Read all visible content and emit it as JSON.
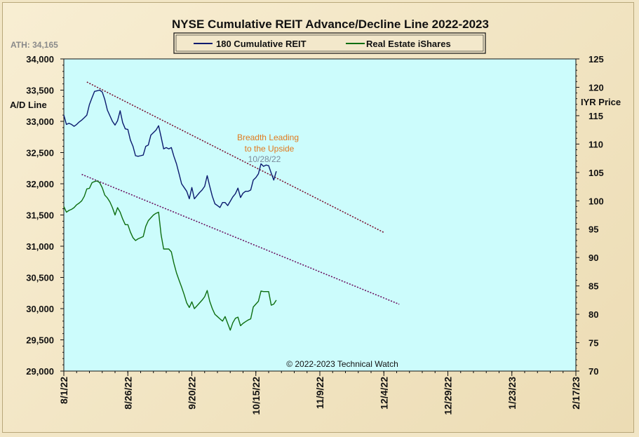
{
  "chart_data": {
    "type": "line",
    "title": "NYSE Cumulative  REIT Advance/Decline  Line 2022-2023",
    "ath_label": "ATH: 34,165",
    "ylabel_left": "A/D Line",
    "ylabel_right": "IYR Price",
    "copyright": "© 2022-2023  Technical  Watch",
    "annotation": {
      "lines": [
        "Breadth Leading",
        "to the Upside"
      ],
      "date": "10/28/22",
      "color": "#e07a1f",
      "date_color": "#7a8a9a"
    },
    "x_range": [
      0,
      200
    ],
    "x_ticks": [
      {
        "label": "8/1/22",
        "day": 0
      },
      {
        "label": "8/26/22",
        "day": 25
      },
      {
        "label": "9/20/22",
        "day": 50
      },
      {
        "label": "10/15/22",
        "day": 75
      },
      {
        "label": "11/9/22",
        "day": 100
      },
      {
        "label": "12/4/22",
        "day": 125
      },
      {
        "label": "12/29/22",
        "day": 150
      },
      {
        "label": "1/23/23",
        "day": 175
      },
      {
        "label": "2/17/23",
        "day": 200
      }
    ],
    "y_left": {
      "min": 29000,
      "max": 34000,
      "ticks": [
        "29,000",
        "29,500",
        "30,000",
        "30,500",
        "31,000",
        "31,500",
        "32,000",
        "32,500",
        "33,000",
        "33,500",
        "34,000"
      ]
    },
    "y_right": {
      "min": 70,
      "max": 125,
      "ticks": [
        "70",
        "75",
        "80",
        "85",
        "90",
        "95",
        "100",
        "105",
        "110",
        "115",
        "120",
        "125"
      ]
    },
    "series": [
      {
        "name": "180 Cumulative REIT",
        "axis": "left",
        "color": "#0b1a6e",
        "points": [
          [
            0,
            33100
          ],
          [
            1,
            32950
          ],
          [
            2,
            32970
          ],
          [
            3,
            32950
          ],
          [
            4,
            32920
          ],
          [
            5,
            32950
          ],
          [
            6,
            32990
          ],
          [
            7,
            33020
          ],
          [
            8,
            33060
          ],
          [
            9,
            33100
          ],
          [
            10,
            33270
          ],
          [
            11,
            33380
          ],
          [
            12,
            33480
          ],
          [
            13,
            33490
          ],
          [
            14,
            33500
          ],
          [
            15,
            33470
          ],
          [
            16,
            33350
          ],
          [
            17,
            33180
          ],
          [
            18,
            33090
          ],
          [
            19,
            33000
          ],
          [
            20,
            32940
          ],
          [
            21,
            33010
          ],
          [
            22,
            33170
          ],
          [
            23,
            32980
          ],
          [
            24,
            32880
          ],
          [
            25,
            32870
          ],
          [
            26,
            32700
          ],
          [
            27,
            32600
          ],
          [
            28,
            32450
          ],
          [
            29,
            32440
          ],
          [
            30,
            32450
          ],
          [
            31,
            32460
          ],
          [
            32,
            32600
          ],
          [
            33,
            32620
          ],
          [
            34,
            32780
          ],
          [
            35,
            32820
          ],
          [
            36,
            32860
          ],
          [
            37,
            32930
          ],
          [
            38,
            32750
          ],
          [
            39,
            32560
          ],
          [
            40,
            32580
          ],
          [
            41,
            32560
          ],
          [
            42,
            32580
          ],
          [
            43,
            32440
          ],
          [
            44,
            32320
          ],
          [
            45,
            32160
          ],
          [
            46,
            32000
          ],
          [
            47,
            31940
          ],
          [
            48,
            31880
          ],
          [
            49,
            31760
          ],
          [
            50,
            31940
          ],
          [
            51,
            31760
          ],
          [
            52,
            31810
          ],
          [
            53,
            31860
          ],
          [
            54,
            31900
          ],
          [
            55,
            31960
          ],
          [
            56,
            32130
          ],
          [
            57,
            31960
          ],
          [
            58,
            31800
          ],
          [
            59,
            31680
          ],
          [
            60,
            31650
          ],
          [
            61,
            31620
          ],
          [
            62,
            31700
          ],
          [
            63,
            31700
          ],
          [
            64,
            31650
          ],
          [
            65,
            31720
          ],
          [
            66,
            31790
          ],
          [
            67,
            31840
          ],
          [
            68,
            31930
          ],
          [
            69,
            31780
          ],
          [
            70,
            31850
          ],
          [
            71,
            31880
          ],
          [
            72,
            31880
          ],
          [
            73,
            31900
          ],
          [
            74,
            32060
          ],
          [
            75,
            32100
          ],
          [
            76,
            32160
          ],
          [
            77,
            32320
          ],
          [
            78,
            32280
          ],
          [
            79,
            32300
          ],
          [
            80,
            32290
          ],
          [
            81,
            32170
          ],
          [
            82,
            32060
          ],
          [
            83,
            32200
          ]
        ]
      },
      {
        "name": "Real Estate iShares",
        "axis": "right",
        "color": "#0d6e10",
        "points": [
          [
            0,
            99.0
          ],
          [
            1,
            98.0
          ],
          [
            2,
            98.3
          ],
          [
            3,
            98.5
          ],
          [
            4,
            98.8
          ],
          [
            5,
            99.3
          ],
          [
            6,
            99.6
          ],
          [
            7,
            100.0
          ],
          [
            8,
            100.8
          ],
          [
            9,
            102.1
          ],
          [
            10,
            102.2
          ],
          [
            11,
            103.2
          ],
          [
            12,
            103.4
          ],
          [
            13,
            103.5
          ],
          [
            14,
            103.2
          ],
          [
            15,
            102.3
          ],
          [
            16,
            101.0
          ],
          [
            17,
            100.5
          ],
          [
            18,
            99.8
          ],
          [
            19,
            98.8
          ],
          [
            20,
            97.5
          ],
          [
            21,
            98.8
          ],
          [
            22,
            98.0
          ],
          [
            23,
            96.8
          ],
          [
            24,
            95.8
          ],
          [
            25,
            95.8
          ],
          [
            26,
            94.5
          ],
          [
            27,
            93.5
          ],
          [
            28,
            93.0
          ],
          [
            29,
            93.3
          ],
          [
            30,
            93.5
          ],
          [
            31,
            93.7
          ],
          [
            32,
            95.5
          ],
          [
            33,
            96.5
          ],
          [
            34,
            97.0
          ],
          [
            35,
            97.5
          ],
          [
            36,
            97.8
          ],
          [
            37,
            98.0
          ],
          [
            38,
            94.0
          ],
          [
            39,
            91.5
          ],
          [
            40,
            91.5
          ],
          [
            41,
            91.5
          ],
          [
            42,
            91.0
          ],
          [
            43,
            89.0
          ],
          [
            44,
            87.3
          ],
          [
            45,
            86.0
          ],
          [
            46,
            84.8
          ],
          [
            47,
            83.5
          ],
          [
            48,
            82.0
          ],
          [
            49,
            81.2
          ],
          [
            50,
            82.2
          ],
          [
            51,
            81.0
          ],
          [
            52,
            81.5
          ],
          [
            53,
            82.0
          ],
          [
            54,
            82.5
          ],
          [
            55,
            83.1
          ],
          [
            56,
            84.2
          ],
          [
            57,
            82.3
          ],
          [
            58,
            81.0
          ],
          [
            59,
            80.0
          ],
          [
            60,
            79.6
          ],
          [
            61,
            79.2
          ],
          [
            62,
            78.8
          ],
          [
            63,
            79.6
          ],
          [
            64,
            78.4
          ],
          [
            65,
            77.2
          ],
          [
            66,
            78.5
          ],
          [
            67,
            79.3
          ],
          [
            68,
            79.5
          ],
          [
            69,
            78.0
          ],
          [
            70,
            78.4
          ],
          [
            71,
            78.7
          ],
          [
            72,
            79.0
          ],
          [
            73,
            79.2
          ],
          [
            74,
            81.3
          ],
          [
            75,
            81.8
          ],
          [
            76,
            82.3
          ],
          [
            77,
            84.1
          ],
          [
            78,
            84.0
          ],
          [
            79,
            84.0
          ],
          [
            80,
            84.0
          ],
          [
            81,
            81.6
          ],
          [
            82,
            81.8
          ],
          [
            83,
            82.5
          ]
        ]
      }
    ],
    "trendlines": [
      {
        "color": "#7a1030",
        "start": [
          9,
          33630
        ],
        "end": [
          125,
          31220
        ]
      },
      {
        "color": "#6a1060",
        "start": [
          7,
          32150
        ],
        "end": [
          131,
          30070
        ]
      }
    ],
    "legend": {
      "placement": "top-center"
    },
    "plot_background": "#ccfcfc",
    "grid": false
  }
}
